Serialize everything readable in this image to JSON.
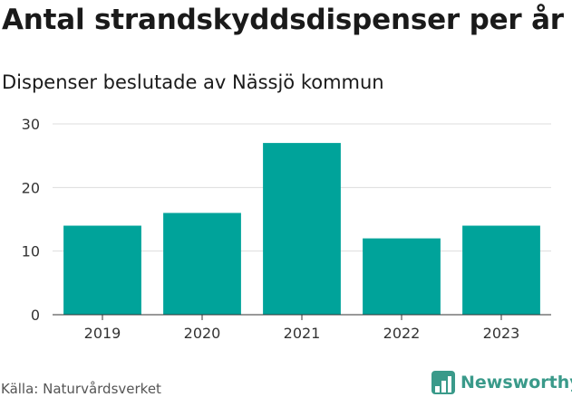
{
  "title": "Antal strandskyddsdispenser per år",
  "subtitle": "Dispenser beslutade av Nässjö kommun",
  "source": "Källa: Naturvårdsverket",
  "brand": "Newsworthy",
  "colors": {
    "bar": "#00a39a",
    "grid": "#dddddd",
    "axis": "#333333",
    "brand": "#3a9a8a"
  },
  "chart_data": {
    "type": "bar",
    "title": "Antal strandskyddsdispenser per år",
    "subtitle": "Dispenser beslutade av Nässjö kommun",
    "categories": [
      "2019",
      "2020",
      "2021",
      "2022",
      "2023"
    ],
    "values": [
      14,
      16,
      27,
      12,
      14
    ],
    "yticks": [
      0,
      10,
      20,
      30
    ],
    "ylim": [
      0,
      30
    ],
    "xlabel": "",
    "ylabel": "",
    "grid": true
  }
}
